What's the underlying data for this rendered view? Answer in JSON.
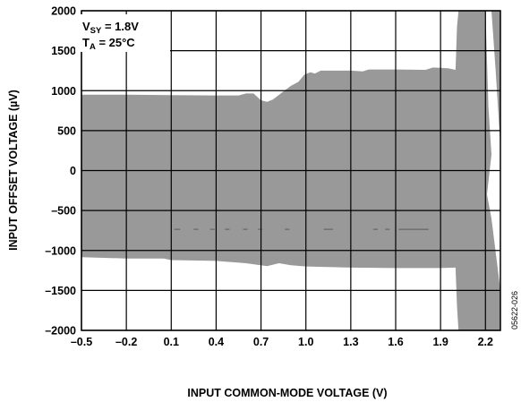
{
  "chart_data": {
    "type": "area",
    "xlabel": "INPUT COMMON-MODE VOLTAGE (V)",
    "ylabel_parts": [
      "INPUT OFFSET VOLTAGE (",
      "µ",
      "V)"
    ],
    "xlim": [
      -0.5,
      2.3
    ],
    "ylim": [
      -2000,
      2000
    ],
    "xticks": [
      -0.5,
      -0.2,
      0.1,
      0.4,
      0.7,
      1.0,
      1.3,
      1.6,
      1.9,
      2.2
    ],
    "xtick_labels": [
      "–0.5",
      "–0.2",
      "0.1",
      "0.4",
      "0.7",
      "1.0",
      "1.3",
      "1.6",
      "1.9",
      "2.2"
    ],
    "yticks": [
      -2000,
      -1500,
      -1000,
      -500,
      0,
      500,
      1000,
      1500,
      2000
    ],
    "ytick_labels": [
      "–2000",
      "–1500",
      "–1000",
      "–500",
      "0",
      "500",
      "1000",
      "1500",
      "2000"
    ],
    "grid": true,
    "fill_color": "#999999",
    "annotation": {
      "line1": {
        "main": "V",
        "sub": "SY",
        "rest": " = 1.8V"
      },
      "line2": {
        "main": "T",
        "sub": "A",
        "rest": " = 25°C"
      }
    },
    "figure_id": "05622-026",
    "band_upper": [
      {
        "x": -0.5,
        "y": 950
      },
      {
        "x": -0.2,
        "y": 950
      },
      {
        "x": 0.1,
        "y": 945
      },
      {
        "x": 0.4,
        "y": 940
      },
      {
        "x": 0.55,
        "y": 940
      },
      {
        "x": 0.6,
        "y": 965
      },
      {
        "x": 0.65,
        "y": 965
      },
      {
        "x": 0.7,
        "y": 880
      },
      {
        "x": 0.74,
        "y": 860
      },
      {
        "x": 0.78,
        "y": 890
      },
      {
        "x": 0.85,
        "y": 990
      },
      {
        "x": 0.9,
        "y": 1060
      },
      {
        "x": 0.95,
        "y": 1110
      },
      {
        "x": 0.99,
        "y": 1200
      },
      {
        "x": 1.03,
        "y": 1230
      },
      {
        "x": 1.06,
        "y": 1215
      },
      {
        "x": 1.1,
        "y": 1250
      },
      {
        "x": 1.3,
        "y": 1250
      },
      {
        "x": 1.38,
        "y": 1240
      },
      {
        "x": 1.42,
        "y": 1265
      },
      {
        "x": 1.6,
        "y": 1265
      },
      {
        "x": 1.8,
        "y": 1260
      },
      {
        "x": 1.85,
        "y": 1290
      },
      {
        "x": 1.95,
        "y": 1280
      },
      {
        "x": 2.0,
        "y": 1260
      },
      {
        "x": 2.01,
        "y": 1800
      },
      {
        "x": 2.02,
        "y": 2000
      },
      {
        "x": 2.3,
        "y": 2000
      }
    ],
    "band_lower": [
      {
        "x": -0.5,
        "y": -1085
      },
      {
        "x": -0.2,
        "y": -1100
      },
      {
        "x": 0.05,
        "y": -1100
      },
      {
        "x": 0.1,
        "y": -1120
      },
      {
        "x": 0.4,
        "y": -1130
      },
      {
        "x": 0.6,
        "y": -1160
      },
      {
        "x": 0.74,
        "y": -1195
      },
      {
        "x": 0.82,
        "y": -1160
      },
      {
        "x": 0.9,
        "y": -1185
      },
      {
        "x": 1.0,
        "y": -1200
      },
      {
        "x": 1.3,
        "y": -1215
      },
      {
        "x": 1.6,
        "y": -1220
      },
      {
        "x": 1.9,
        "y": -1220
      },
      {
        "x": 2.0,
        "y": -1215
      },
      {
        "x": 2.01,
        "y": -1700
      },
      {
        "x": 2.02,
        "y": -2000
      },
      {
        "x": 2.3,
        "y": -2000
      }
    ],
    "inner_gap": [
      {
        "x": 2.2,
        "y": 2000
      },
      {
        "x": 2.22,
        "y": 800
      },
      {
        "x": 2.24,
        "y": 200
      },
      {
        "x": 2.21,
        "y": -300
      },
      {
        "x": 2.24,
        "y": -600
      },
      {
        "x": 2.28,
        "y": -1200
      },
      {
        "x": 2.3,
        "y": -1500
      },
      {
        "x": 2.3,
        "y": 300
      },
      {
        "x": 2.27,
        "y": 1200
      },
      {
        "x": 2.24,
        "y": 2000
      }
    ],
    "dash_level": -735,
    "dashes": [
      [
        0.12,
        0.16
      ],
      [
        0.25,
        0.28
      ],
      [
        0.36,
        0.39
      ],
      [
        0.46,
        0.49
      ],
      [
        0.58,
        0.61
      ],
      [
        0.68,
        0.71
      ],
      [
        0.86,
        0.89
      ],
      [
        1.12,
        1.18
      ],
      [
        1.45,
        1.48
      ],
      [
        1.53,
        1.56
      ],
      [
        1.62,
        1.82
      ]
    ]
  }
}
